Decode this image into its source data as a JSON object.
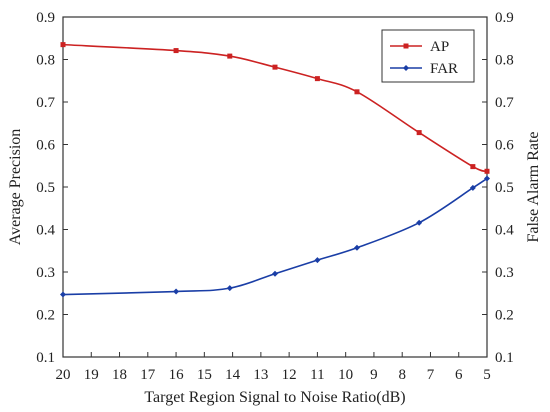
{
  "chart_data": {
    "type": "line",
    "xlabel": "Target Region Signal to Noise Ratio(dB)",
    "ylabel": "Average Precision",
    "y2label": "False Alarm Rate",
    "x_ticks": [
      "20",
      "19",
      "18",
      "17",
      "16",
      "15",
      "14",
      "13",
      "12",
      "11",
      "10",
      "9",
      "8",
      "7",
      "6",
      "5"
    ],
    "xlim": [
      20,
      5
    ],
    "x_reversed": true,
    "ylim": [
      0.1,
      0.9
    ],
    "y2lim": [
      0.1,
      0.9
    ],
    "y_ticks": [
      "0.1",
      "0.2",
      "0.3",
      "0.4",
      "0.5",
      "0.6",
      "0.7",
      "0.8",
      "0.9"
    ],
    "y2_ticks": [
      "0.1",
      "0.2",
      "0.3",
      "0.4",
      "0.5",
      "0.6",
      "0.7",
      "0.8",
      "0.9"
    ],
    "grid": false,
    "legend_position": "top-right",
    "series": [
      {
        "name": "AP",
        "color": "#cc2222",
        "marker": "square",
        "axis": "left",
        "x": [
          20,
          16,
          14.1,
          12.5,
          11,
          9.6,
          7.4,
          5.5,
          5
        ],
        "y": [
          0.835,
          0.821,
          0.808,
          0.782,
          0.755,
          0.724,
          0.628,
          0.548,
          0.537
        ]
      },
      {
        "name": "FAR",
        "color": "#1a3ea6",
        "marker": "diamond",
        "axis": "right",
        "x": [
          20,
          16,
          14.1,
          12.5,
          11,
          9.6,
          7.4,
          5.5,
          5
        ],
        "y": [
          0.247,
          0.254,
          0.262,
          0.296,
          0.328,
          0.357,
          0.416,
          0.498,
          0.52
        ]
      }
    ]
  }
}
